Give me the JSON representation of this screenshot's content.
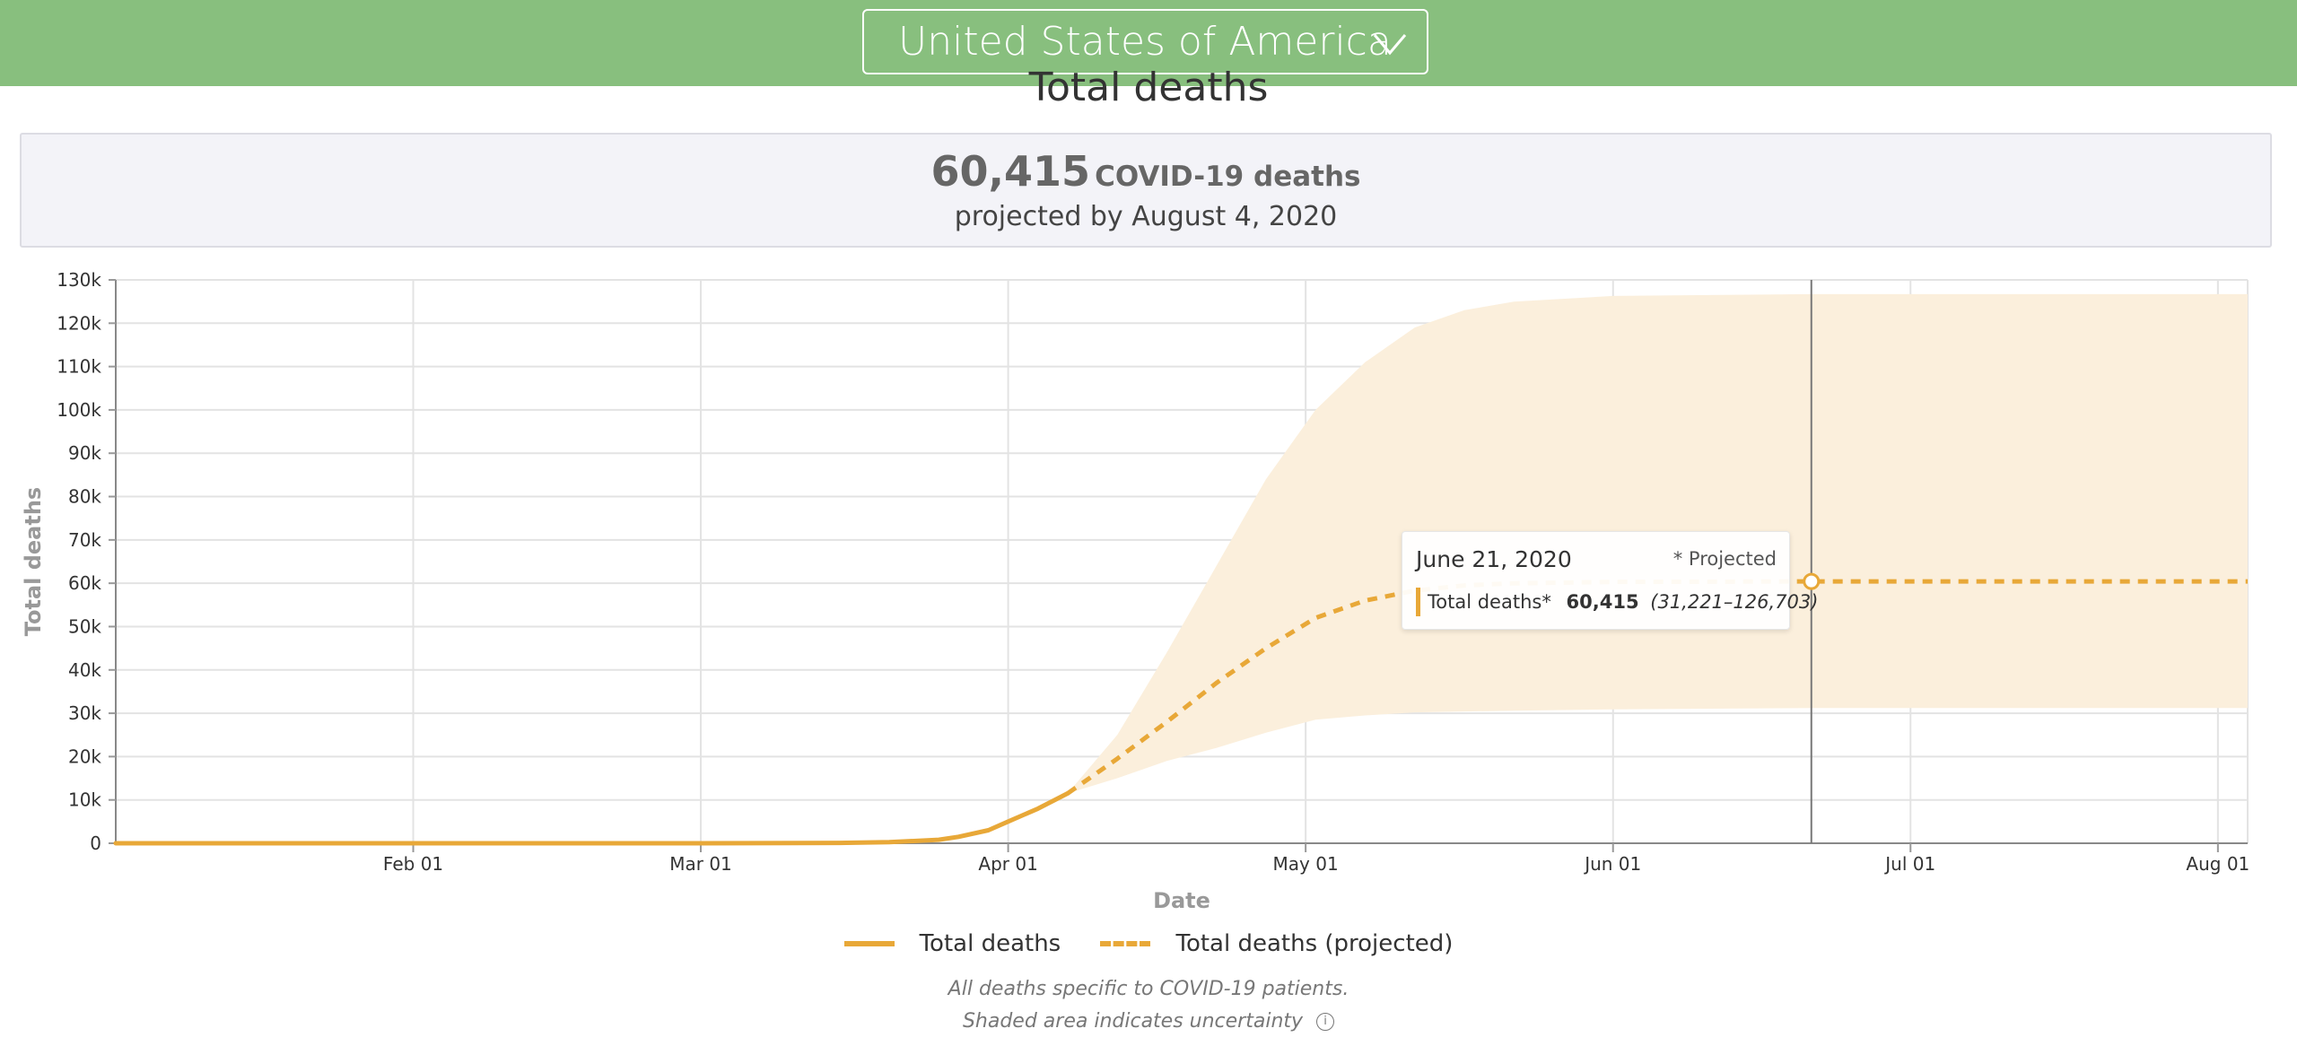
{
  "header": {
    "country": "United States of America",
    "dropdown_icon": "chevron-down-icon"
  },
  "section_title": "Total deaths",
  "summary": {
    "number": "60,415",
    "unit": "COVID-19 deaths",
    "subtitle": "projected by August 4, 2020"
  },
  "tooltip": {
    "date": "June 21, 2020",
    "projected_flag": "* Projected",
    "series_label": "Total deaths*",
    "value": "60,415",
    "range": "(31,221–126,703)"
  },
  "legend": {
    "actual": "Total deaths",
    "projected": "Total deaths (projected)"
  },
  "footnotes": {
    "line1": "All deaths specific to COVID-19 patients.",
    "line2": "Shaded area indicates uncertainty",
    "info_icon": "info-icon"
  },
  "colors": {
    "header_bg": "#88bf7e",
    "series": "#e8a838",
    "uncertainty": "#fbefdc"
  },
  "chart_data": {
    "type": "line",
    "xlabel": "Date",
    "ylabel": "Total deaths",
    "x_range": [
      "2020-01-02",
      "2020-08-04"
    ],
    "ylim": [
      0,
      130000
    ],
    "y_ticks": [
      0,
      10000,
      20000,
      30000,
      40000,
      50000,
      60000,
      70000,
      80000,
      90000,
      100000,
      110000,
      120000,
      130000
    ],
    "y_tick_labels": [
      "0",
      "10k",
      "20k",
      "30k",
      "40k",
      "50k",
      "60k",
      "70k",
      "80k",
      "90k",
      "100k",
      "110k",
      "120k",
      "130k"
    ],
    "x_ticks": [
      "2020-02-01",
      "2020-03-01",
      "2020-04-01",
      "2020-05-01",
      "2020-06-01",
      "2020-07-01",
      "2020-08-01"
    ],
    "x_tick_labels": [
      "Feb 01",
      "Mar 01",
      "Apr 01",
      "May 01",
      "Jun 01",
      "Jul 01",
      "Aug 01"
    ],
    "grid": true,
    "legend_position": "bottom",
    "series": [
      {
        "name": "Total deaths",
        "style": "solid",
        "points": [
          [
            "2020-01-02",
            0
          ],
          [
            "2020-02-01",
            0
          ],
          [
            "2020-03-01",
            0
          ],
          [
            "2020-03-15",
            80
          ],
          [
            "2020-03-20",
            250
          ],
          [
            "2020-03-25",
            800
          ],
          [
            "2020-03-27",
            1500
          ],
          [
            "2020-03-30",
            3000
          ],
          [
            "2020-04-01",
            5000
          ],
          [
            "2020-04-04",
            8000
          ],
          [
            "2020-04-07",
            11500
          ]
        ]
      },
      {
        "name": "Total deaths (projected)",
        "style": "dashed",
        "points": [
          [
            "2020-04-07",
            11500
          ],
          [
            "2020-04-12",
            19500
          ],
          [
            "2020-04-17",
            28000
          ],
          [
            "2020-04-22",
            37000
          ],
          [
            "2020-04-27",
            45000
          ],
          [
            "2020-05-02",
            52000
          ],
          [
            "2020-05-07",
            56000
          ],
          [
            "2020-05-12",
            58300
          ],
          [
            "2020-05-17",
            59500
          ],
          [
            "2020-05-22",
            60000
          ],
          [
            "2020-06-01",
            60300
          ],
          [
            "2020-06-21",
            60415
          ],
          [
            "2020-08-04",
            60415
          ]
        ]
      }
    ],
    "uncertainty": {
      "label": "Shaded area indicates uncertainty",
      "upper": [
        [
          "2020-04-07",
          11500
        ],
        [
          "2020-04-12",
          25000
        ],
        [
          "2020-04-17",
          44000
        ],
        [
          "2020-04-22",
          64000
        ],
        [
          "2020-04-27",
          84000
        ],
        [
          "2020-05-02",
          100000
        ],
        [
          "2020-05-07",
          111000
        ],
        [
          "2020-05-12",
          119000
        ],
        [
          "2020-05-17",
          123000
        ],
        [
          "2020-05-22",
          125000
        ],
        [
          "2020-06-01",
          126300
        ],
        [
          "2020-06-21",
          126703
        ],
        [
          "2020-08-04",
          126703
        ]
      ],
      "lower": [
        [
          "2020-04-07",
          11500
        ],
        [
          "2020-04-12",
          15000
        ],
        [
          "2020-04-17",
          19000
        ],
        [
          "2020-04-22",
          22000
        ],
        [
          "2020-04-27",
          25500
        ],
        [
          "2020-05-02",
          28500
        ],
        [
          "2020-05-07",
          29500
        ],
        [
          "2020-05-12",
          30200
        ],
        [
          "2020-05-22",
          30600
        ],
        [
          "2020-06-01",
          30900
        ],
        [
          "2020-06-21",
          31221
        ],
        [
          "2020-08-04",
          31221
        ]
      ]
    },
    "hover": {
      "date": "2020-06-21",
      "value": 60415
    }
  }
}
